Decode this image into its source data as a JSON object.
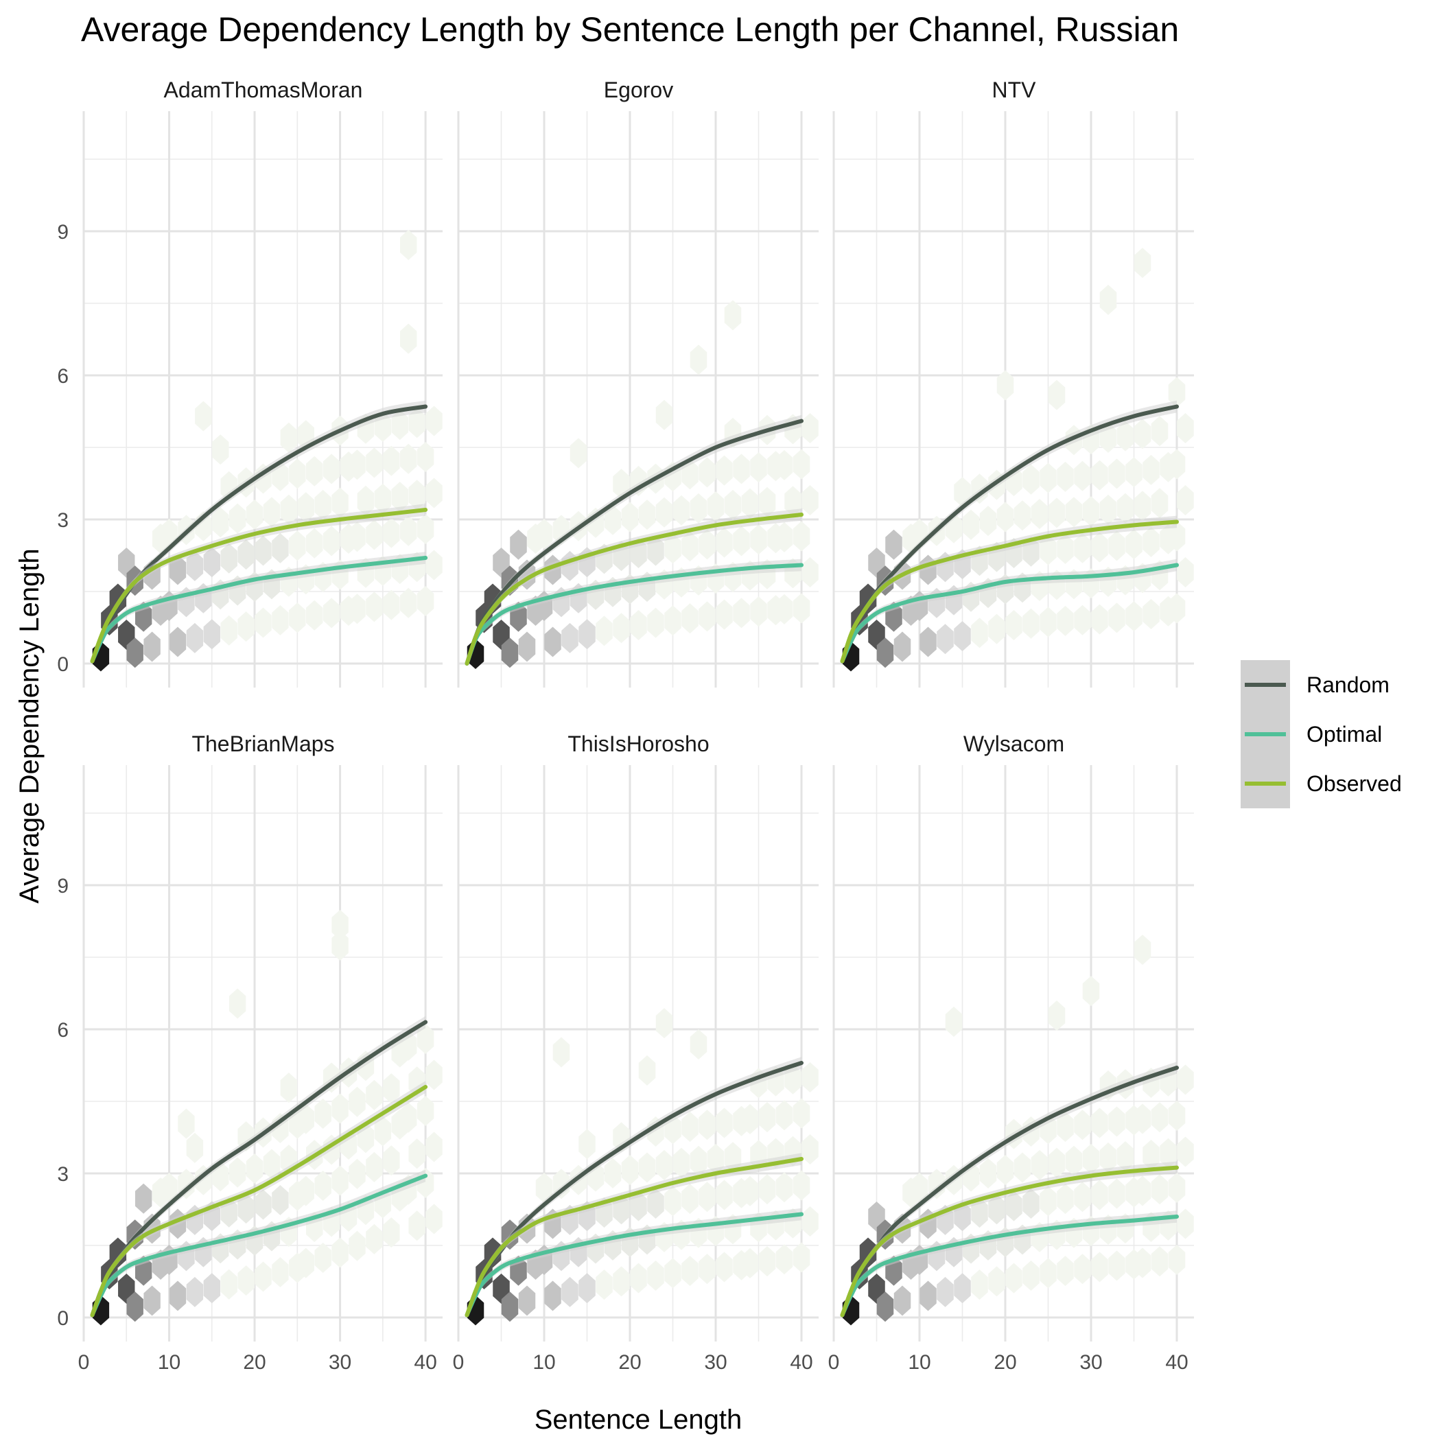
{
  "chart_data": {
    "type": "line",
    "title": "Average Dependency Length by Sentence Length per Channel, Russian",
    "xlabel": "Sentence Length",
    "ylabel": "Average Dependency Length",
    "xlim": [
      0,
      42
    ],
    "ylim": [
      -0.5,
      11.5
    ],
    "xticks": [
      "0",
      "10",
      "20",
      "30",
      "40"
    ],
    "yticks": [
      "0",
      "3",
      "6",
      "9"
    ],
    "x": [
      1,
      2,
      3,
      5,
      7,
      10,
      15,
      20,
      25,
      30,
      35,
      40
    ],
    "legend": {
      "position": "right",
      "entries": [
        {
          "name": "Random",
          "color": "#4b5a50"
        },
        {
          "name": "Optimal",
          "color": "#50c098"
        },
        {
          "name": "Observed",
          "color": "#96be32"
        }
      ]
    },
    "panels": [
      {
        "name": "AdamThomasMoran",
        "series": [
          {
            "name": "Random",
            "values": [
              0.05,
              0.5,
              0.9,
              1.45,
              1.9,
              2.4,
              3.2,
              3.85,
              4.4,
              4.85,
              5.2,
              5.35
            ]
          },
          {
            "name": "Optimal",
            "values": [
              0.05,
              0.45,
              0.75,
              1.05,
              1.2,
              1.35,
              1.55,
              1.75,
              1.88,
              2.0,
              2.1,
              2.2
            ]
          },
          {
            "name": "Observed",
            "values": [
              0.05,
              0.55,
              0.95,
              1.5,
              1.85,
              2.15,
              2.45,
              2.7,
              2.88,
              3.0,
              3.1,
              3.2
            ]
          }
        ]
      },
      {
        "name": "Egorov",
        "series": [
          {
            "name": "Random",
            "values": [
              0.0,
              0.55,
              0.95,
              1.45,
              1.85,
              2.3,
              2.95,
              3.55,
              4.05,
              4.5,
              4.8,
              5.05
            ]
          },
          {
            "name": "Optimal",
            "values": [
              0.0,
              0.5,
              0.75,
              1.05,
              1.2,
              1.35,
              1.55,
              1.7,
              1.82,
              1.92,
              2.0,
              2.05
            ]
          },
          {
            "name": "Observed",
            "values": [
              0.0,
              0.55,
              0.9,
              1.35,
              1.65,
              1.95,
              2.25,
              2.5,
              2.7,
              2.88,
              3.0,
              3.1
            ]
          }
        ]
      },
      {
        "name": "NTV",
        "series": [
          {
            "name": "Random",
            "values": [
              0.05,
              0.55,
              0.95,
              1.5,
              1.9,
              2.45,
              3.25,
              3.9,
              4.45,
              4.85,
              5.15,
              5.35
            ]
          },
          {
            "name": "Optimal",
            "values": [
              0.05,
              0.45,
              0.75,
              1.05,
              1.2,
              1.35,
              1.5,
              1.7,
              1.78,
              1.82,
              1.9,
              2.05
            ]
          },
          {
            "name": "Observed",
            "values": [
              0.05,
              0.6,
              0.95,
              1.45,
              1.75,
              2.0,
              2.25,
              2.45,
              2.65,
              2.78,
              2.88,
              2.95
            ]
          }
        ]
      },
      {
        "name": "TheBrianMaps",
        "series": [
          {
            "name": "Random",
            "values": [
              0.05,
              0.55,
              0.9,
              1.45,
              1.85,
              2.35,
              3.1,
              3.7,
              4.35,
              5.0,
              5.6,
              6.15
            ]
          },
          {
            "name": "Optimal",
            "values": [
              0.05,
              0.45,
              0.75,
              1.05,
              1.2,
              1.35,
              1.55,
              1.75,
              1.98,
              2.25,
              2.6,
              2.95
            ]
          },
          {
            "name": "Observed",
            "values": [
              0.05,
              0.55,
              0.95,
              1.4,
              1.7,
              1.95,
              2.3,
              2.65,
              3.15,
              3.7,
              4.25,
              4.8
            ]
          }
        ]
      },
      {
        "name": "ThisIsHorosho",
        "series": [
          {
            "name": "Random",
            "values": [
              0.05,
              0.5,
              0.9,
              1.4,
              1.85,
              2.35,
              3.05,
              3.65,
              4.2,
              4.65,
              5.0,
              5.3
            ]
          },
          {
            "name": "Optimal",
            "values": [
              0.05,
              0.45,
              0.75,
              1.05,
              1.2,
              1.35,
              1.55,
              1.72,
              1.85,
              1.95,
              2.05,
              2.15
            ]
          },
          {
            "name": "Observed",
            "values": [
              0.05,
              0.55,
              0.95,
              1.45,
              1.75,
              2.05,
              2.3,
              2.55,
              2.8,
              3.0,
              3.15,
              3.3
            ]
          }
        ]
      },
      {
        "name": "Wylsacom",
        "series": [
          {
            "name": "Random",
            "values": [
              0.05,
              0.5,
              0.9,
              1.45,
              1.9,
              2.35,
              3.05,
              3.65,
              4.15,
              4.55,
              4.9,
              5.2
            ]
          },
          {
            "name": "Optimal",
            "values": [
              0.05,
              0.45,
              0.75,
              1.05,
              1.2,
              1.35,
              1.55,
              1.72,
              1.85,
              1.95,
              2.02,
              2.1
            ]
          },
          {
            "name": "Observed",
            "values": [
              0.05,
              0.55,
              0.95,
              1.45,
              1.75,
              2.0,
              2.35,
              2.6,
              2.8,
              2.95,
              3.05,
              3.12
            ]
          }
        ]
      }
    ]
  }
}
